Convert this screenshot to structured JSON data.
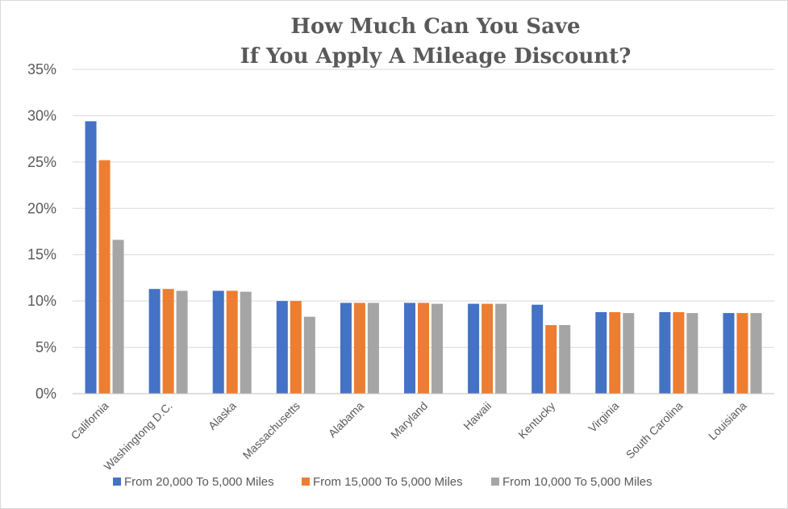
{
  "chart_data": {
    "type": "bar",
    "title": [
      "How Much Can You Save",
      "If You Apply A Mileage Discount?"
    ],
    "xlabel": "",
    "ylabel": "",
    "ylim": [
      0,
      35
    ],
    "yticks": [
      0,
      5,
      10,
      15,
      20,
      25,
      30,
      35
    ],
    "ytick_labels": [
      "0%",
      "5%",
      "10%",
      "15%",
      "20%",
      "25%",
      "30%",
      "35%"
    ],
    "categories": [
      "California",
      "Washingtong D.C.",
      "Alaska",
      "Massachusetts",
      "Alabama",
      "Maryland",
      "Hawaii",
      "Kentucky",
      "Virginia",
      "South Carolina",
      "Louisiana"
    ],
    "series": [
      {
        "name": "From 20,000 To 5,000 Miles",
        "color": "#4472C4",
        "values": [
          29.4,
          11.3,
          11.1,
          10.0,
          9.8,
          9.8,
          9.7,
          9.6,
          8.8,
          8.8,
          8.7
        ]
      },
      {
        "name": "From 15,000 To 5,000 Miles",
        "color": "#ED7D31",
        "values": [
          25.2,
          11.3,
          11.1,
          10.0,
          9.8,
          9.8,
          9.7,
          7.4,
          8.8,
          8.8,
          8.7
        ]
      },
      {
        "name": "From 10,000 To 5,000 Miles",
        "color": "#A5A5A5",
        "values": [
          16.6,
          11.1,
          11.0,
          8.3,
          9.8,
          9.7,
          9.7,
          7.4,
          8.7,
          8.7,
          8.7
        ]
      }
    ],
    "grid": true,
    "legend_position": "bottom"
  }
}
